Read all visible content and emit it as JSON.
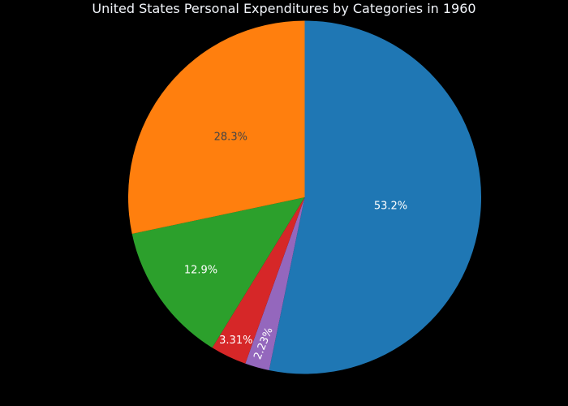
{
  "background_color": "#000000",
  "chart_data": {
    "type": "pie",
    "title": "United States Personal Expenditures by Categories in 1960",
    "title_color": "#f2f5fa",
    "legend": "none",
    "grid": false,
    "start_angle_deg": 0,
    "direction": "clockwise",
    "slices": [
      {
        "label": "53.2%",
        "value": 53.2,
        "color": "#1f77b4",
        "text_color": "#ffffff",
        "label_radius": 0.49,
        "label_rotation": 0
      },
      {
        "label": "2.23%",
        "value": 2.23,
        "color": "#9467bd",
        "text_color": "#ffffff",
        "label_radius": 0.86,
        "label_rotation": -68
      },
      {
        "label": "3.31%",
        "value": 3.31,
        "color": "#d62728",
        "text_color": "#ffffff",
        "label_radius": 0.9,
        "label_rotation": 0
      },
      {
        "label": "12.9%",
        "value": 12.9,
        "color": "#2ca02c",
        "text_color": "#ffffff",
        "label_radius": 0.72,
        "label_rotation": 0
      },
      {
        "label": "28.3%",
        "value": 28.3,
        "color": "#ff7f0e",
        "text_color": "#444444",
        "label_radius": 0.54,
        "label_rotation": 0
      }
    ]
  }
}
